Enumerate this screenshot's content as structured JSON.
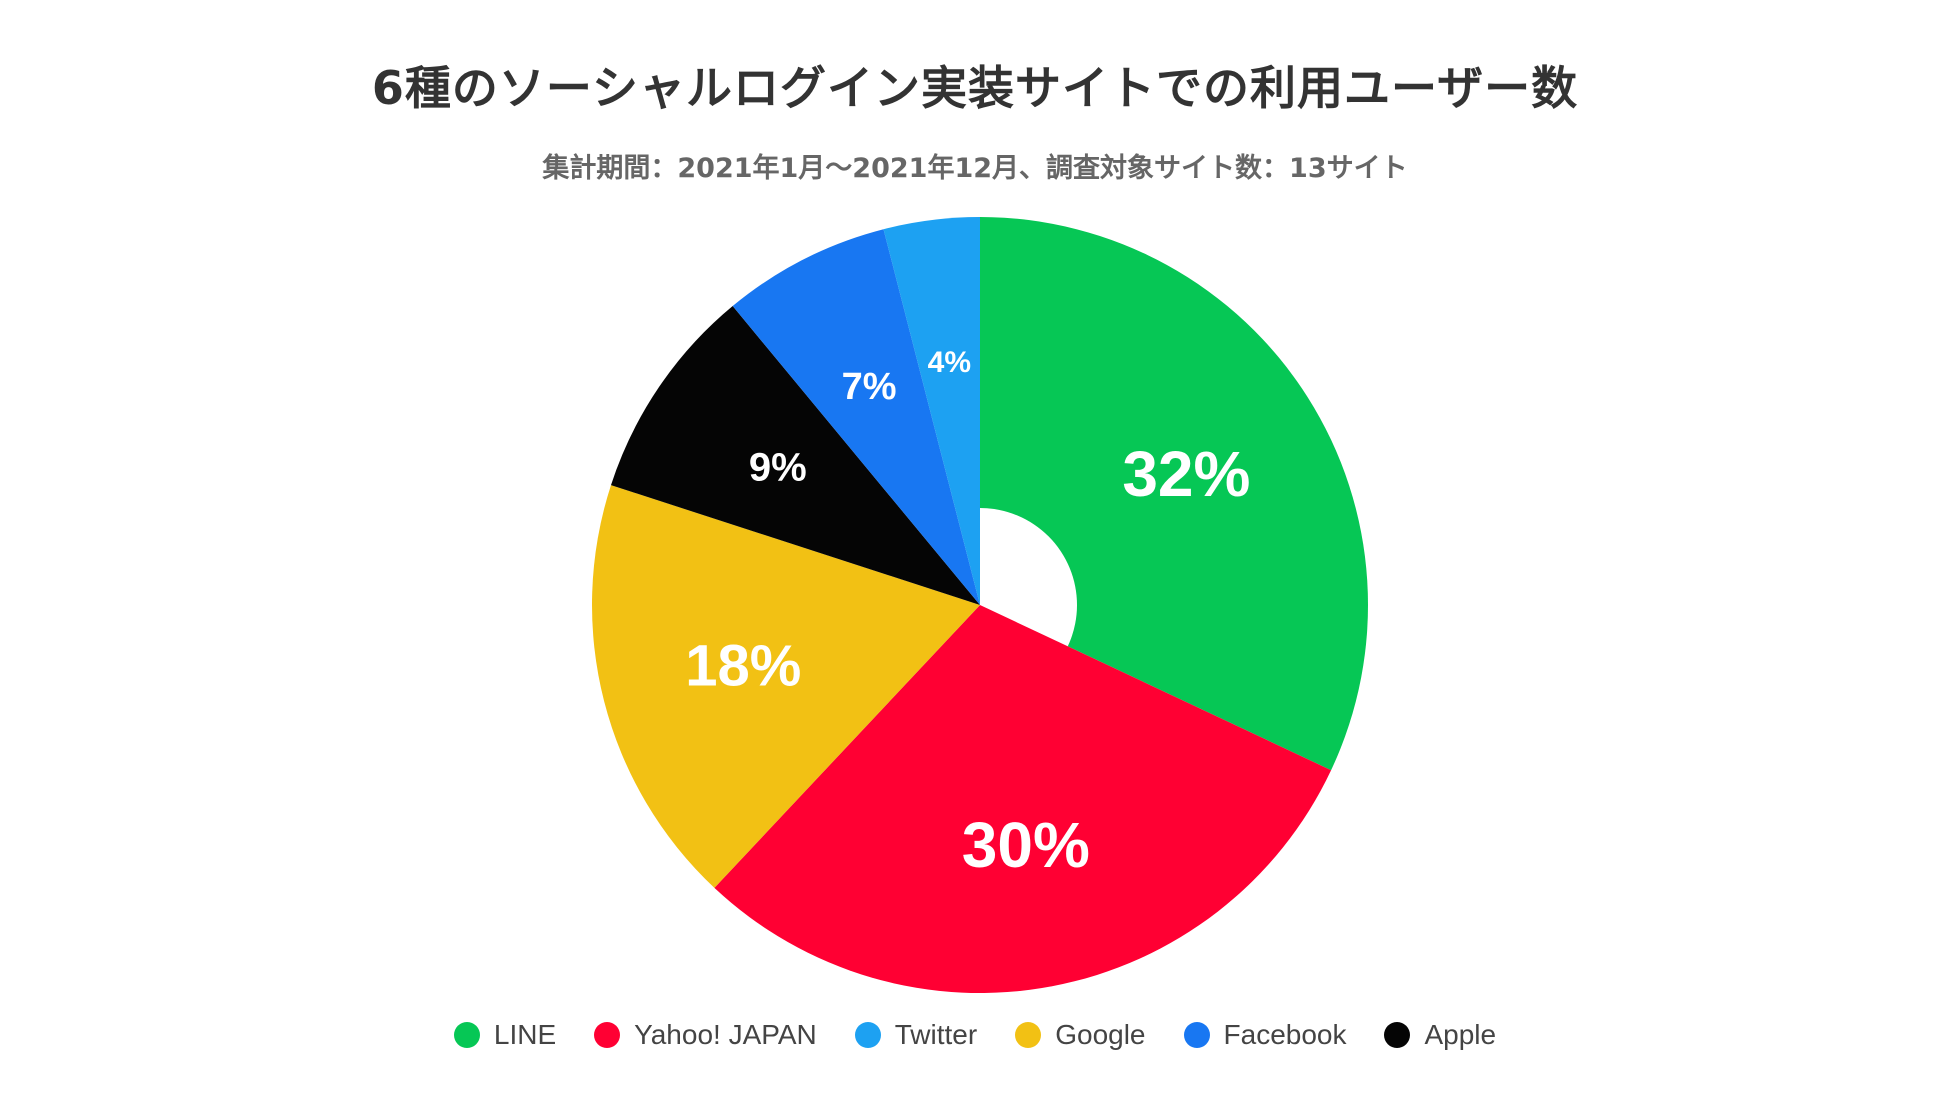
{
  "chart_title": "6種のソーシャルログイン実装サイトでの利用ユーザー数",
  "chart_subtitle": "集計期間：2021年1月～2021年12月、調査対象サイト数：13サイト",
  "chart_data": {
    "type": "pie",
    "variant": "donut",
    "start_angle_deg": 0,
    "direction": "clockwise",
    "slices": [
      {
        "label": "LINE",
        "value": 32,
        "display": "32%",
        "color": "#06C755"
      },
      {
        "label": "Yahoo! JAPAN",
        "value": 30,
        "display": "30%",
        "color": "#FF0033"
      },
      {
        "label": "Google",
        "value": 18,
        "display": "18%",
        "color": "#F2C114"
      },
      {
        "label": "Apple",
        "value": 9,
        "display": "9%",
        "color": "#050505"
      },
      {
        "label": "Facebook",
        "value": 7,
        "display": "7%",
        "color": "#1877F2"
      },
      {
        "label": "Twitter",
        "value": 4,
        "display": "4%",
        "color": "#1DA1F2"
      }
    ],
    "legend": {
      "placement": "bottom",
      "order": [
        "LINE",
        "Yahoo! JAPAN",
        "Twitter",
        "Google",
        "Facebook",
        "Apple"
      ]
    }
  }
}
